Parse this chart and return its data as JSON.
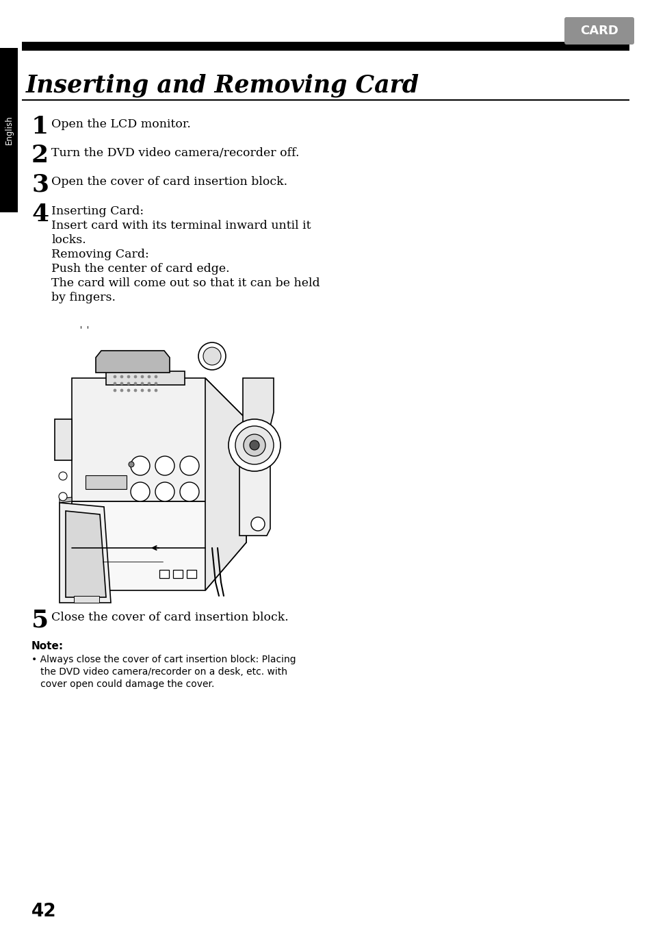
{
  "bg_color": "#ffffff",
  "page_number": "42",
  "card_badge_text": "CARD",
  "card_badge_bg": "#909090",
  "card_badge_text_color": "#ffffff",
  "title": "Inserting and Removing Card",
  "sidebar_text": "English",
  "sidebar_bg": "#000000",
  "sidebar_text_color": "#ffffff",
  "thick_bar_color": "#000000",
  "thin_bar_color": "#000000",
  "step1": "Open the LCD monitor.",
  "step2": "Turn the DVD video camera/recorder off.",
  "step3": "Open the cover of card insertion block.",
  "step4_lines": [
    "Inserting Card:",
    "Insert card with its terminal inward until it",
    "locks.",
    "Removing Card:",
    "Push the center of card edge.",
    "The card will come out so that it can be held",
    "by fingers."
  ],
  "step5": "Close the cover of card insertion block.",
  "note_header": "Note:",
  "note_lines": [
    "• Always close the cover of cart insertion block: Placing",
    "   the DVD video camera/recorder on a desk, etc. with",
    "   cover open could damage the cover."
  ]
}
